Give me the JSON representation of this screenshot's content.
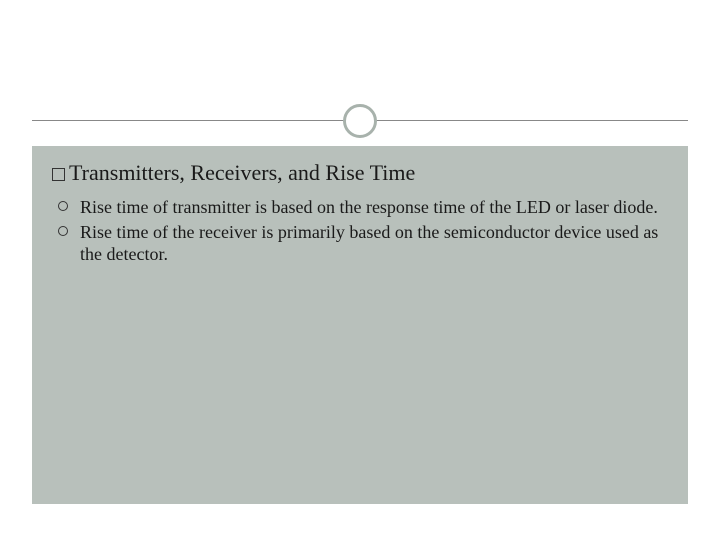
{
  "slide": {
    "heading": "Transmitters, Receivers, and Rise Time",
    "bullets": [
      "Rise time of transmitter is based on the response time of the LED or laser diode.",
      "Rise time of the receiver is primarily based on the semiconductor device used as the detector."
    ]
  },
  "style": {
    "background_color": "#ffffff",
    "content_box_color": "#b8c0bb",
    "accent_circle_border": "#a8b2ac",
    "divider_color": "#888888",
    "text_color": "#1a1a1a",
    "heading_fontsize": 22,
    "body_fontsize": 18,
    "font_family": "Georgia, serif",
    "square_bullet_size": 13,
    "circle_bullet_size": 10,
    "slide_width": 720,
    "slide_height": 540
  }
}
